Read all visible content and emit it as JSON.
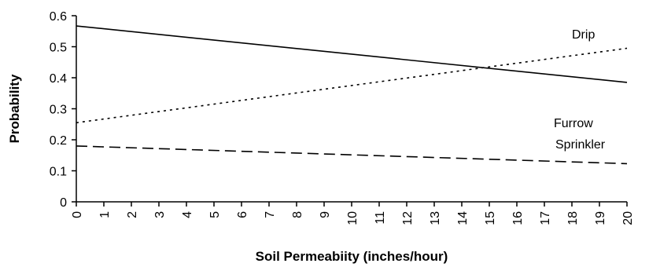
{
  "chart_data": {
    "type": "line",
    "xlabel": "Soil Permeabiity (inches/hour)",
    "ylabel": "Probability",
    "xlim": [
      0,
      20
    ],
    "ylim": [
      0,
      0.6
    ],
    "x_ticks": [
      "0",
      "1",
      "2",
      "3",
      "4",
      "5",
      "6",
      "7",
      "8",
      "9",
      "10",
      "11",
      "12",
      "13",
      "14",
      "15",
      "16",
      "17",
      "18",
      "19",
      "20"
    ],
    "y_ticks": [
      "0",
      "0.1",
      "0.2",
      "0.3",
      "0.4",
      "0.5",
      "0.6"
    ],
    "grid": false,
    "legend": "none",
    "series": [
      {
        "name": "Drip",
        "x": [
          0,
          20
        ],
        "y": [
          0.255,
          0.495
        ],
        "line_style": "dotted",
        "color": "#000000"
      },
      {
        "name": "Furrow",
        "x": [
          0,
          20
        ],
        "y": [
          0.567,
          0.385
        ],
        "line_style": "solid",
        "color": "#000000"
      },
      {
        "name": "Sprinkler",
        "x": [
          0,
          20
        ],
        "y": [
          0.18,
          0.123
        ],
        "line_style": "dashed",
        "color": "#000000"
      }
    ]
  }
}
